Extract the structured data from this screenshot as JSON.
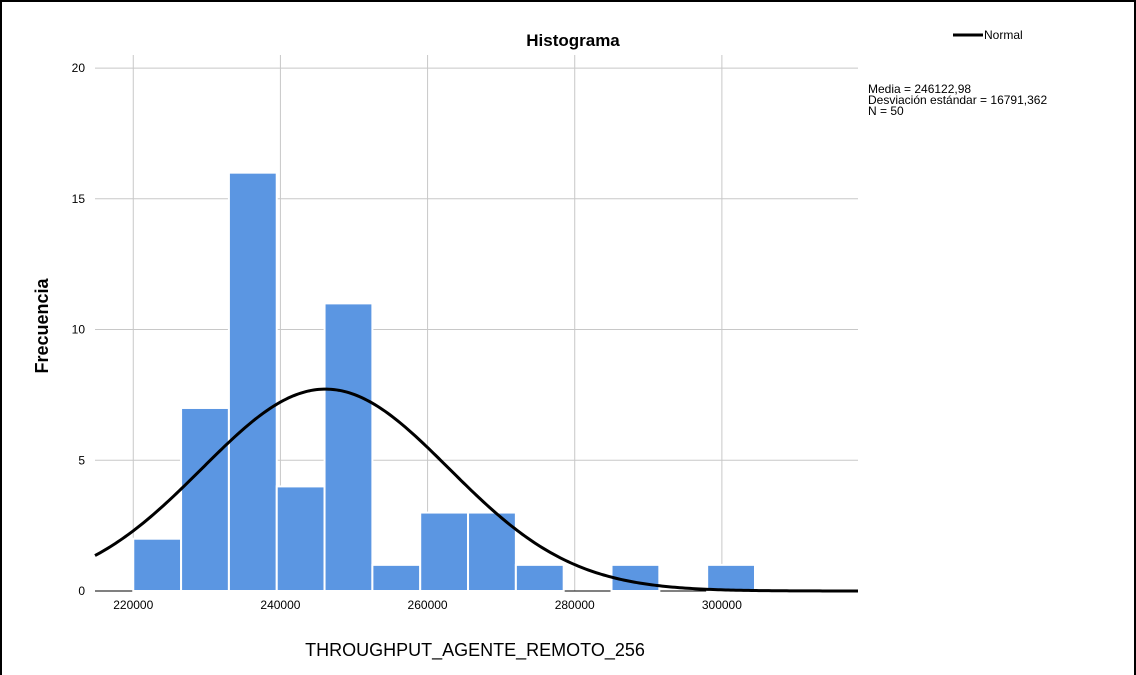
{
  "chart_data": {
    "type": "bar",
    "title": "Histograma",
    "xlabel": "THROUGHPUT_AGENTE_REMOTO_256",
    "ylabel": "Frecuencia",
    "bin_width": 6500,
    "bins": [
      {
        "x0": 220000,
        "x1": 226500,
        "count": 2
      },
      {
        "x0": 226500,
        "x1": 233000,
        "count": 7
      },
      {
        "x0": 233000,
        "x1": 239500,
        "count": 16
      },
      {
        "x0": 239500,
        "x1": 246000,
        "count": 4
      },
      {
        "x0": 246000,
        "x1": 252500,
        "count": 11
      },
      {
        "x0": 252500,
        "x1": 259000,
        "count": 1
      },
      {
        "x0": 259000,
        "x1": 265500,
        "count": 3
      },
      {
        "x0": 265500,
        "x1": 272000,
        "count": 3
      },
      {
        "x0": 272000,
        "x1": 278500,
        "count": 1
      },
      {
        "x0": 278500,
        "x1": 285000,
        "count": 0
      },
      {
        "x0": 285000,
        "x1": 291500,
        "count": 1
      },
      {
        "x0": 291500,
        "x1": 298000,
        "count": 0
      },
      {
        "x0": 298000,
        "x1": 304500,
        "count": 1
      }
    ],
    "xlim": [
      214800,
      318500
    ],
    "ylim": [
      0,
      20.5
    ],
    "xticks": [
      220000,
      240000,
      260000,
      280000,
      300000
    ],
    "yticks": [
      0,
      5,
      10,
      15,
      20
    ],
    "grid": true,
    "normal_curve": {
      "mean": 246122.98,
      "sd": 16791.362,
      "n": 50
    },
    "legend": {
      "label": "Normal",
      "position": "top-right"
    },
    "stats_text": [
      "Media = 246122,98",
      "Desviación estándar = 16791,362",
      "N = 50"
    ],
    "colors": {
      "bar": "#5b96e2",
      "bar_edge": "#ffffff",
      "grid": "#c8c8c8",
      "curve": "#000000"
    }
  }
}
